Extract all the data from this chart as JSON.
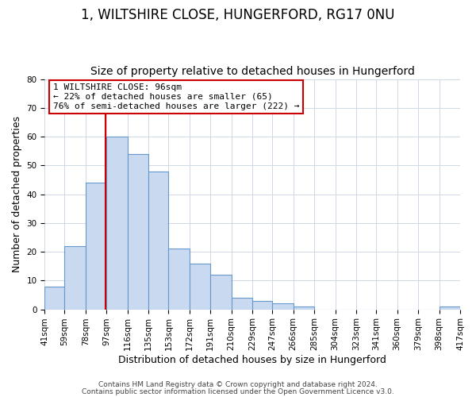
{
  "title": "1, WILTSHIRE CLOSE, HUNGERFORD, RG17 0NU",
  "subtitle": "Size of property relative to detached houses in Hungerford",
  "xlabel": "Distribution of detached houses by size in Hungerford",
  "ylabel": "Number of detached properties",
  "bar_edges": [
    41,
    59,
    78,
    97,
    116,
    135,
    153,
    172,
    191,
    210,
    229,
    247,
    266,
    285,
    304,
    323,
    341,
    360,
    379,
    398,
    417
  ],
  "bar_heights": [
    8,
    22,
    44,
    60,
    54,
    48,
    21,
    16,
    12,
    4,
    3,
    2,
    1,
    0,
    0,
    0,
    0,
    0,
    0,
    1
  ],
  "tick_labels": [
    "41sqm",
    "59sqm",
    "78sqm",
    "97sqm",
    "116sqm",
    "135sqm",
    "153sqm",
    "172sqm",
    "191sqm",
    "210sqm",
    "229sqm",
    "247sqm",
    "266sqm",
    "285sqm",
    "304sqm",
    "323sqm",
    "341sqm",
    "360sqm",
    "379sqm",
    "398sqm",
    "417sqm"
  ],
  "bar_color": "#c9d9f0",
  "bar_edge_color": "#6699cc",
  "vline_x": 96,
  "vline_color": "#cc0000",
  "ylim": [
    0,
    80
  ],
  "yticks": [
    0,
    10,
    20,
    30,
    40,
    50,
    60,
    70,
    80
  ],
  "annotation_box_text": "1 WILTSHIRE CLOSE: 96sqm\n← 22% of detached houses are smaller (65)\n76% of semi-detached houses are larger (222) →",
  "annotation_box_color": "#cc0000",
  "footnote1": "Contains HM Land Registry data © Crown copyright and database right 2024.",
  "footnote2": "Contains public sector information licensed under the Open Government Licence v3.0.",
  "bg_color": "#ffffff",
  "grid_color": "#d0d8e8",
  "title_fontsize": 12,
  "subtitle_fontsize": 10,
  "label_fontsize": 9,
  "tick_fontsize": 7.5,
  "annotation_fontsize": 8,
  "footnote_fontsize": 6.5
}
